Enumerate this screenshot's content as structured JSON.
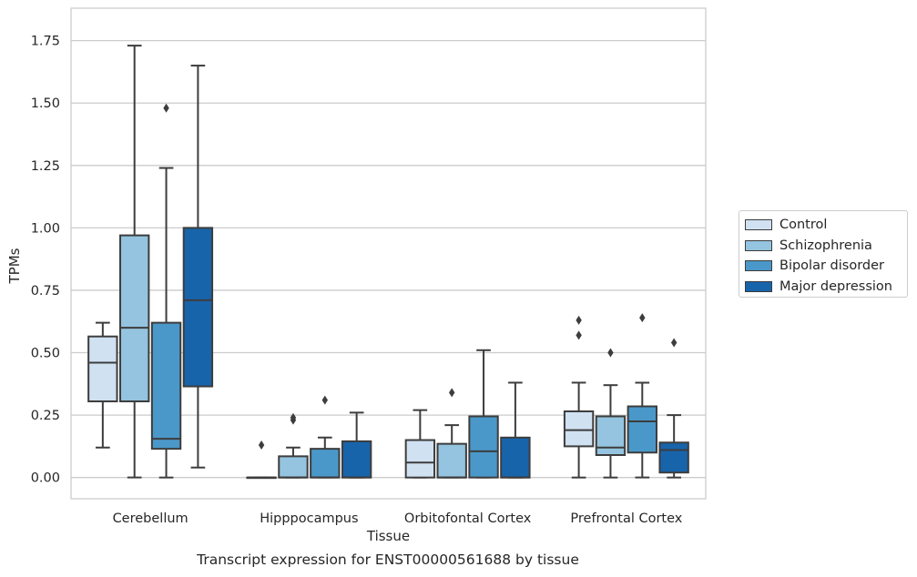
{
  "chart_data": {
    "type": "box",
    "xlabel": "Tissue",
    "ylabel": "TPMs",
    "caption": "Transcript expression for ENST00000561688 by tissue",
    "ylim": [
      -0.085,
      1.88
    ],
    "yticks": [
      "0.00",
      "0.25",
      "0.50",
      "0.75",
      "1.00",
      "1.25",
      "1.50",
      "1.75"
    ],
    "categories": [
      "Cerebellum",
      "Hipppocampus",
      "Orbitofontal Cortex",
      "Prefrontal Cortex"
    ],
    "grid": true,
    "legend_position": "right",
    "series": [
      {
        "name": "Control",
        "color": "#d0e1f2",
        "boxes": [
          {
            "q1": 0.305,
            "median": 0.46,
            "q3": 0.565,
            "whislo": 0.12,
            "whishi": 0.62,
            "fliers": []
          },
          {
            "q1": 0.0,
            "median": 0.0,
            "q3": 0.0,
            "whislo": 0.0,
            "whishi": 0.0,
            "fliers": [
              0.13
            ]
          },
          {
            "q1": 0.0,
            "median": 0.06,
            "q3": 0.15,
            "whislo": 0.0,
            "whishi": 0.27,
            "fliers": []
          },
          {
            "q1": 0.125,
            "median": 0.19,
            "q3": 0.265,
            "whislo": 0.0,
            "whishi": 0.38,
            "fliers": [
              0.57,
              0.63
            ]
          }
        ]
      },
      {
        "name": "Schizophrenia",
        "color": "#94c4df",
        "boxes": [
          {
            "q1": 0.305,
            "median": 0.6,
            "q3": 0.97,
            "whislo": 0.0,
            "whishi": 1.73,
            "fliers": []
          },
          {
            "q1": 0.0,
            "median": 0.0,
            "q3": 0.085,
            "whislo": 0.0,
            "whishi": 0.12,
            "fliers": [
              0.23,
              0.24
            ]
          },
          {
            "q1": 0.0,
            "median": 0.0,
            "q3": 0.135,
            "whislo": 0.0,
            "whishi": 0.21,
            "fliers": [
              0.34
            ]
          },
          {
            "q1": 0.09,
            "median": 0.12,
            "q3": 0.245,
            "whislo": 0.0,
            "whishi": 0.37,
            "fliers": [
              0.5
            ]
          }
        ]
      },
      {
        "name": "Bipolar disorder",
        "color": "#4a98c9",
        "boxes": [
          {
            "q1": 0.115,
            "median": 0.155,
            "q3": 0.62,
            "whislo": 0.0,
            "whishi": 1.24,
            "fliers": [
              1.48
            ]
          },
          {
            "q1": 0.0,
            "median": 0.0,
            "q3": 0.115,
            "whislo": 0.0,
            "whishi": 0.16,
            "fliers": [
              0.31
            ]
          },
          {
            "q1": 0.0,
            "median": 0.105,
            "q3": 0.245,
            "whislo": 0.0,
            "whishi": 0.51,
            "fliers": []
          },
          {
            "q1": 0.1,
            "median": 0.225,
            "q3": 0.285,
            "whislo": 0.0,
            "whishi": 0.38,
            "fliers": [
              0.64
            ]
          }
        ]
      },
      {
        "name": "Major depression",
        "color": "#1764ab",
        "boxes": [
          {
            "q1": 0.365,
            "median": 0.71,
            "q3": 1.0,
            "whislo": 0.04,
            "whishi": 1.65,
            "fliers": []
          },
          {
            "q1": 0.0,
            "median": 0.0,
            "q3": 0.145,
            "whislo": 0.0,
            "whishi": 0.26,
            "fliers": []
          },
          {
            "q1": 0.0,
            "median": 0.0,
            "q3": 0.16,
            "whislo": 0.0,
            "whishi": 0.38,
            "fliers": []
          },
          {
            "q1": 0.02,
            "median": 0.11,
            "q3": 0.14,
            "whislo": 0.0,
            "whishi": 0.25,
            "fliers": [
              0.54
            ]
          }
        ]
      }
    ]
  }
}
